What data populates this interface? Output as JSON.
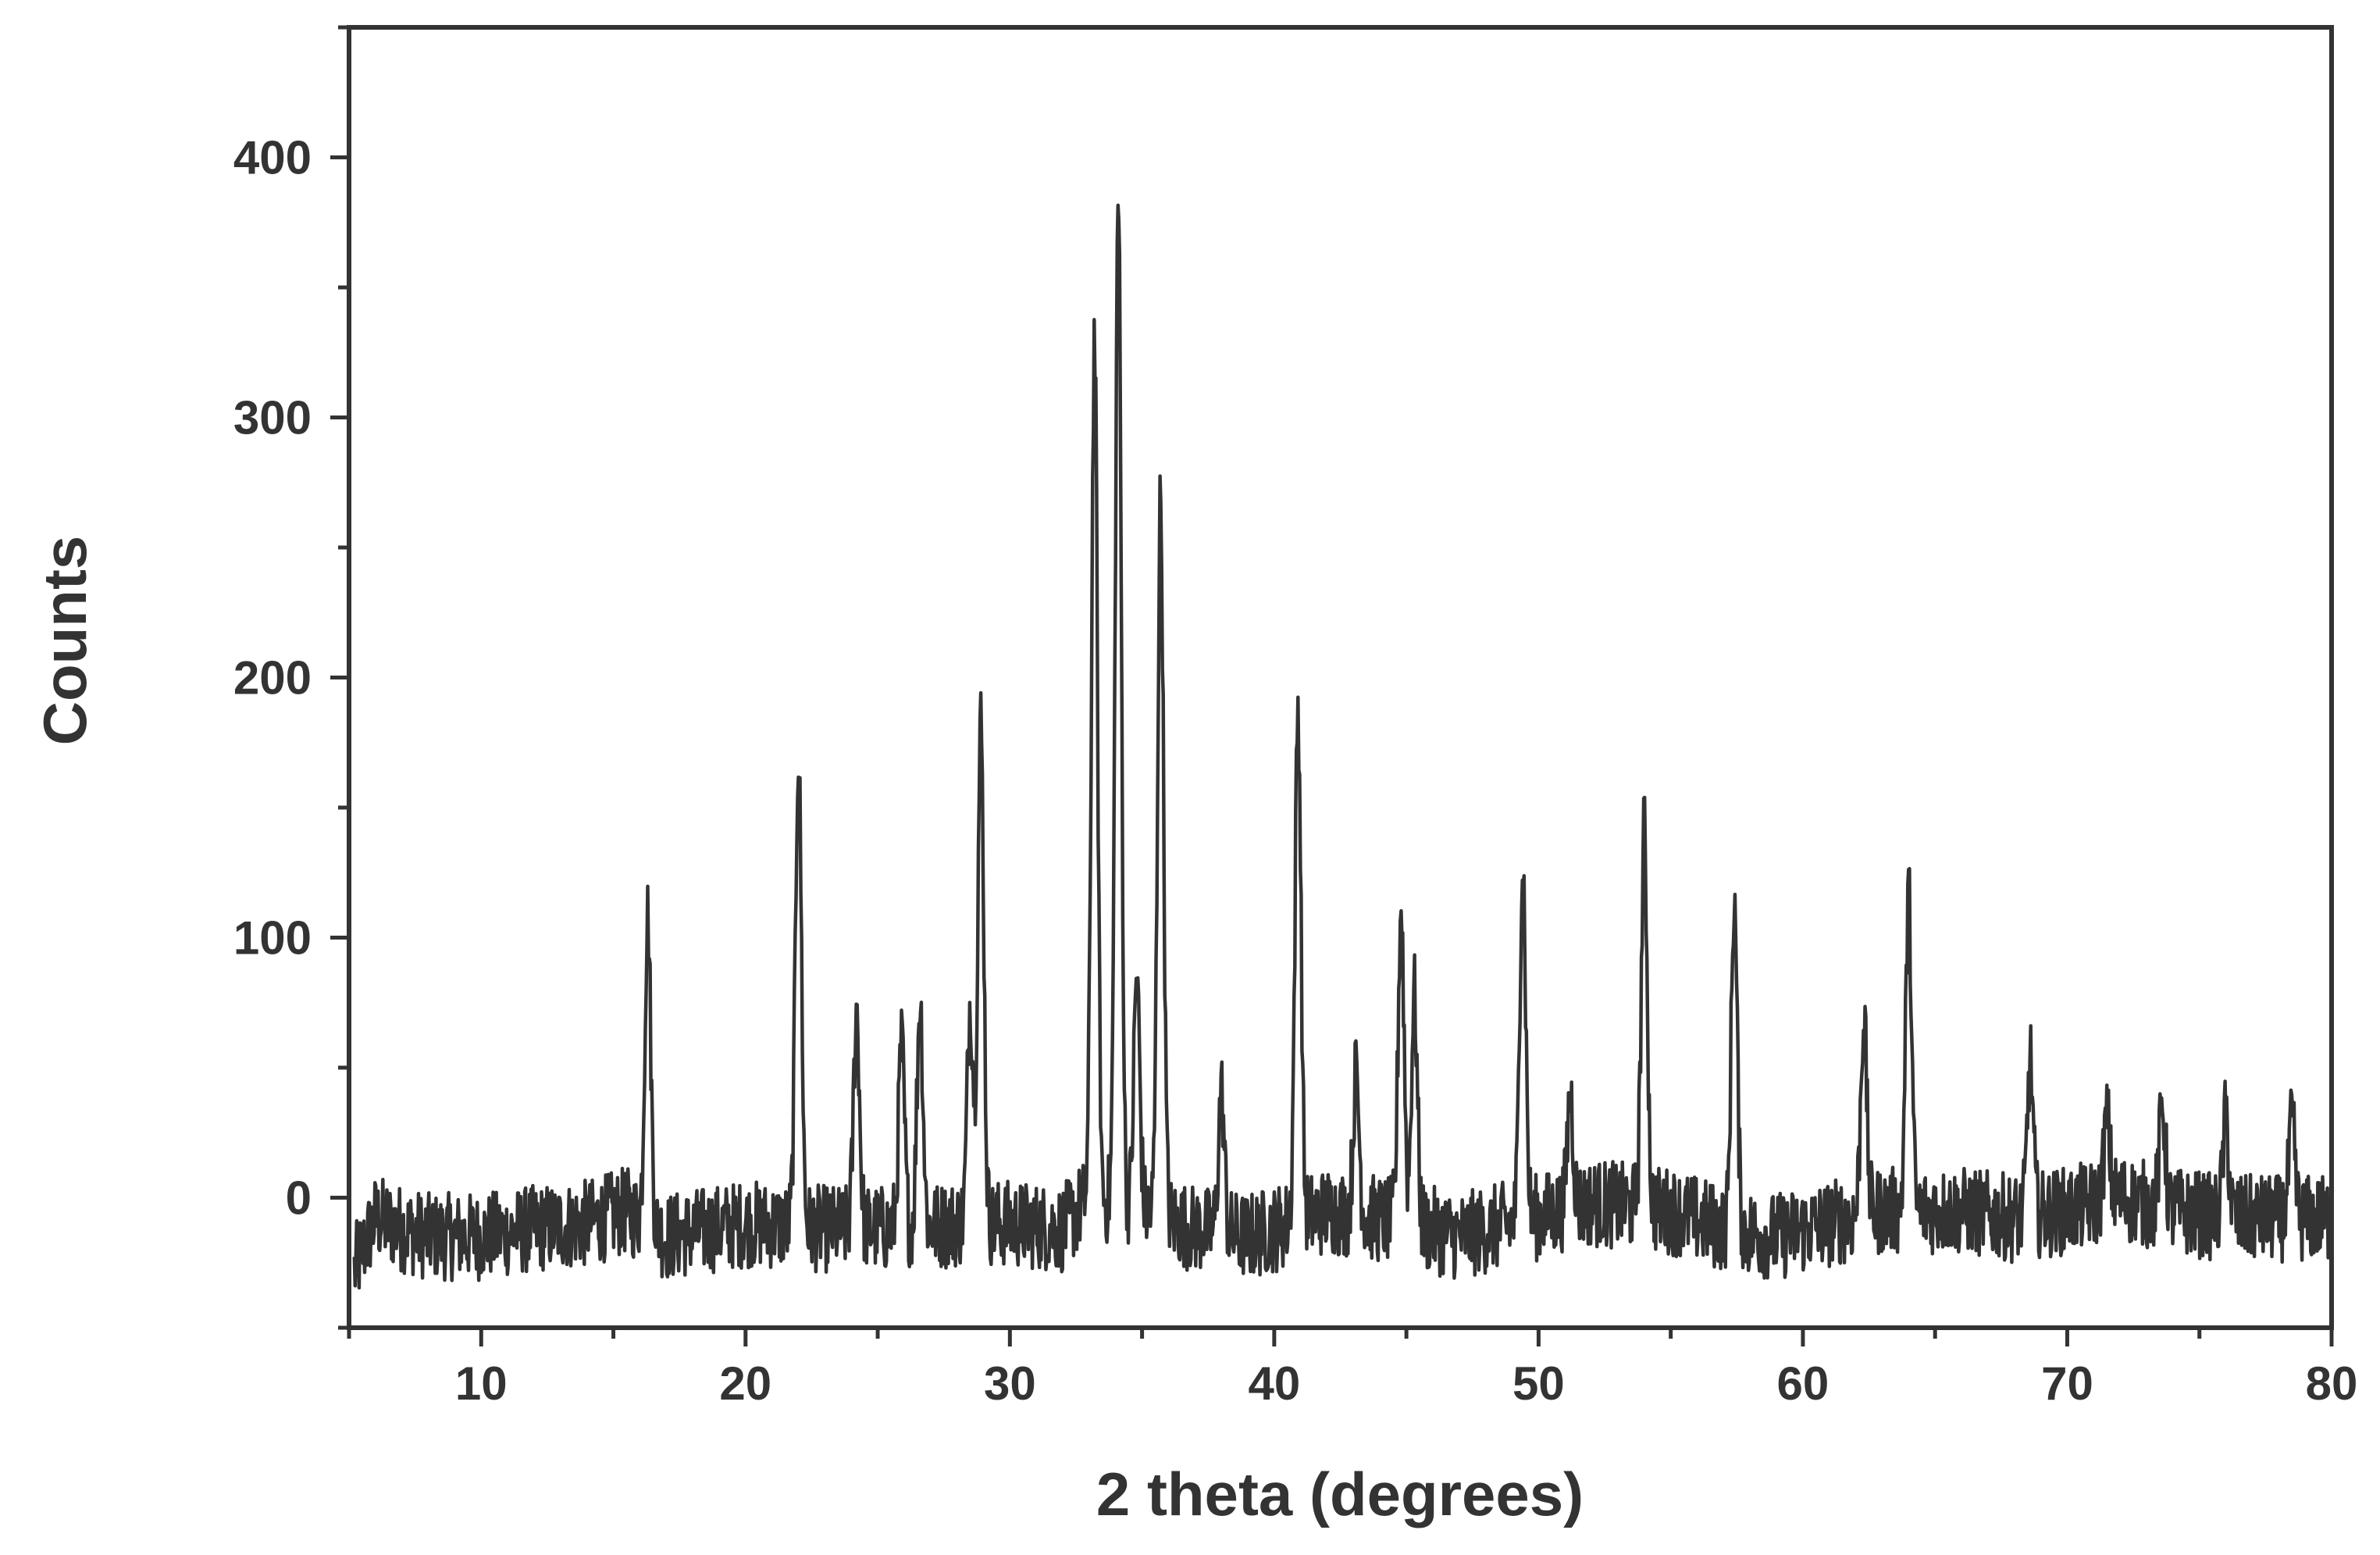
{
  "chart_data": {
    "type": "line",
    "title": "",
    "xlabel": "2 theta (degrees)",
    "ylabel": "Counts",
    "xlim": [
      5,
      80
    ],
    "ylim": [
      -50,
      450
    ],
    "x_ticks": [
      10,
      20,
      30,
      40,
      50,
      60,
      70,
      80
    ],
    "y_ticks": [
      0,
      100,
      200,
      300,
      400
    ],
    "grid": false,
    "legend": "none",
    "line_color": "#333333",
    "baseline": [
      [
        5.2,
        -28
      ],
      [
        6,
        -8
      ],
      [
        7,
        -12
      ],
      [
        8,
        -15
      ],
      [
        10,
        -15
      ],
      [
        12,
        -12
      ],
      [
        14,
        -10
      ],
      [
        15.5,
        -5
      ],
      [
        17,
        -15
      ],
      [
        20,
        -10
      ],
      [
        23,
        -12
      ],
      [
        26,
        -12
      ],
      [
        28,
        -10
      ],
      [
        30,
        -10
      ],
      [
        32,
        -12
      ],
      [
        33,
        0
      ],
      [
        35,
        -5
      ],
      [
        37,
        -12
      ],
      [
        39,
        -15
      ],
      [
        40,
        -12
      ],
      [
        42,
        -5
      ],
      [
        45,
        -10
      ],
      [
        47,
        -15
      ],
      [
        49,
        -10
      ],
      [
        52,
        -2
      ],
      [
        55,
        -5
      ],
      [
        57,
        -12
      ],
      [
        59,
        -15
      ],
      [
        61,
        -10
      ],
      [
        63,
        -5
      ],
      [
        66,
        -5
      ],
      [
        68,
        -8
      ],
      [
        70,
        -5
      ],
      [
        72,
        0
      ],
      [
        74,
        -5
      ],
      [
        76,
        -8
      ],
      [
        78,
        -8
      ],
      [
        80,
        -8
      ]
    ],
    "peaks": [
      {
        "x": 16.3,
        "y": 108
      },
      {
        "x": 22.0,
        "y": 172
      },
      {
        "x": 24.2,
        "y": 72
      },
      {
        "x": 25.9,
        "y": 58
      },
      {
        "x": 26.6,
        "y": 76
      },
      {
        "x": 28.5,
        "y": 75
      },
      {
        "x": 28.9,
        "y": 182
      },
      {
        "x": 33.2,
        "y": 330
      },
      {
        "x": 34.1,
        "y": 385
      },
      {
        "x": 34.8,
        "y": 85
      },
      {
        "x": 35.7,
        "y": 268
      },
      {
        "x": 38.0,
        "y": 40
      },
      {
        "x": 40.9,
        "y": 188
      },
      {
        "x": 43.1,
        "y": 48
      },
      {
        "x": 44.8,
        "y": 112
      },
      {
        "x": 45.3,
        "y": 78
      },
      {
        "x": 49.4,
        "y": 130
      },
      {
        "x": 51.2,
        "y": 40
      },
      {
        "x": 54.0,
        "y": 140
      },
      {
        "x": 57.4,
        "y": 115
      },
      {
        "x": 62.3,
        "y": 70
      },
      {
        "x": 64.0,
        "y": 115
      },
      {
        "x": 68.6,
        "y": 52
      },
      {
        "x": 71.5,
        "y": 30
      },
      {
        "x": 73.6,
        "y": 35
      },
      {
        "x": 76.0,
        "y": 30
      },
      {
        "x": 78.5,
        "y": 28
      }
    ]
  }
}
